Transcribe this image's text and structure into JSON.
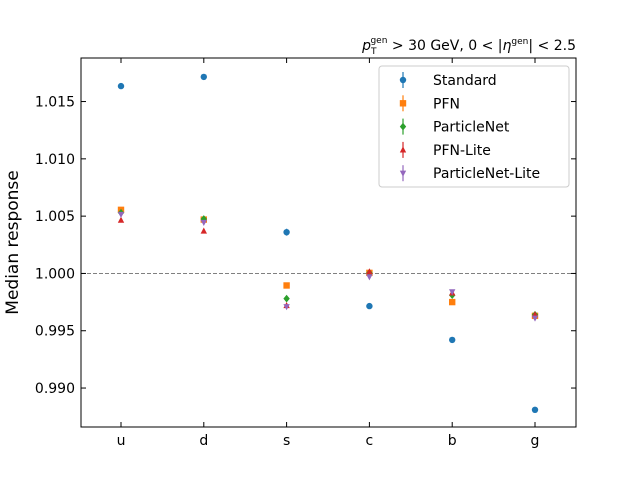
{
  "chart_data": {
    "type": "scatter",
    "title_parts": {
      "p": "p",
      "p_sub": "T",
      "p_sup": "gen",
      "mid": " > 30 GeV, 0 < |",
      "eta": "η",
      "eta_sup": "gen",
      "end": "| < 2.5"
    },
    "xlabel": "",
    "ylabel": "Median response",
    "categories": [
      "u",
      "d",
      "s",
      "c",
      "b",
      "g"
    ],
    "ylim": [
      0.9866,
      1.0188
    ],
    "yticks": [
      0.99,
      0.995,
      1.0,
      1.005,
      1.01,
      1.015
    ],
    "ytick_labels": [
      "0.990",
      "0.995",
      "1.000",
      "1.005",
      "1.010",
      "1.015"
    ],
    "reference_line": 1.0,
    "legend_position": "top-right",
    "series": [
      {
        "name": "Standard",
        "color": "#1f77b4",
        "marker": "circle",
        "values": [
          1.01635,
          1.01715,
          1.0036,
          0.99715,
          0.9942,
          0.9881
        ],
        "errors": [
          5e-05,
          5e-05,
          0.0003,
          5e-05,
          5e-05,
          5e-05
        ]
      },
      {
        "name": "PFN",
        "color": "#ff7f0e",
        "marker": "square",
        "values": [
          1.00555,
          1.0047,
          0.99895,
          1.00005,
          0.9975,
          0.9963
        ],
        "errors": [
          5e-05,
          5e-05,
          0.0001,
          5e-05,
          5e-05,
          5e-05
        ]
      },
      {
        "name": "ParticleNet",
        "color": "#2ca02c",
        "marker": "diamond",
        "values": [
          1.0053,
          1.00475,
          0.9978,
          1.00005,
          0.9981,
          0.9964
        ],
        "errors": [
          5e-05,
          5e-05,
          0.00015,
          5e-05,
          5e-05,
          5e-05
        ]
      },
      {
        "name": "PFN-Lite",
        "color": "#d62728",
        "marker": "triangle-up",
        "values": [
          1.00465,
          1.0037,
          0.9972,
          1.00015,
          0.9983,
          0.9964
        ],
        "errors": [
          5e-05,
          5e-05,
          5e-05,
          5e-05,
          5e-05,
          5e-05
        ]
      },
      {
        "name": "ParticleNet-Lite",
        "color": "#9467bd",
        "marker": "triangle-down",
        "values": [
          1.00515,
          1.00445,
          0.9971,
          0.9997,
          0.9984,
          0.9961
        ],
        "errors": [
          0.0001,
          0.0001,
          0.00015,
          0.0001,
          0.0001,
          0.0001
        ]
      }
    ]
  }
}
